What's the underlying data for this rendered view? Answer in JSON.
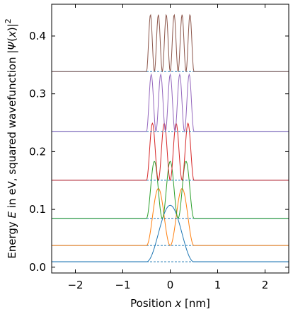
{
  "chart_data": {
    "type": "line",
    "xlabel_parts": [
      "Position ",
      "x",
      " [nm]"
    ],
    "ylabel_parts": [
      "Energy ",
      "E",
      " in eV, squared wavefunction |",
      "Ψ",
      "(",
      "x",
      ")|",
      "2"
    ],
    "xlim": [
      -2.5,
      2.5
    ],
    "ylim": [
      -0.01,
      0.455
    ],
    "xticks": [
      -2,
      -1,
      0,
      1,
      2
    ],
    "xtick_labels": [
      "−2",
      "−1",
      "0",
      "1",
      "2"
    ],
    "yticks": [
      0.0,
      0.1,
      0.2,
      0.3,
      0.4
    ],
    "ytick_labels": [
      "0.0",
      "0.1",
      "0.2",
      "0.3",
      "0.4"
    ],
    "well": {
      "x_min": -0.5,
      "x_max": 0.5
    },
    "states": [
      {
        "n": 1,
        "energy": 0.0094,
        "peak": 0.1071,
        "color": "#1f77b4",
        "curve_color": "#1f77b4"
      },
      {
        "n": 2,
        "energy": 0.0376,
        "peak": 0.1362,
        "color": "#1f77b4",
        "curve_color": "#ff7f0e"
      },
      {
        "n": 3,
        "energy": 0.0846,
        "peak": 0.1832,
        "color": "#1f77b4",
        "curve_color": "#2ca02c"
      },
      {
        "n": 4,
        "energy": 0.1504,
        "peak": 0.249,
        "color": "#1f77b4",
        "curve_color": "#d62728"
      },
      {
        "n": 5,
        "energy": 0.235,
        "peak": 0.3336,
        "color": "#1f77b4",
        "curve_color": "#9467bd"
      },
      {
        "n": 6,
        "energy": 0.3384,
        "peak": 0.437,
        "color": "#1f77b4",
        "curve_color": "#8c564b"
      }
    ]
  }
}
